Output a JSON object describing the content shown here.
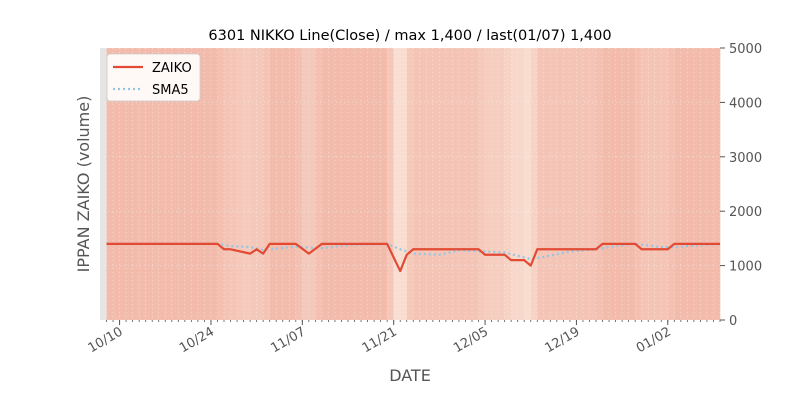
{
  "chart_data": {
    "type": "line",
    "title": "6301 NIKKO Line(Close) / max 1,400 / last(01/07) 1,400",
    "xlabel": "DATE",
    "ylabel": "IPPAN ZAIKO (volume)",
    "ylim": [
      0,
      5000
    ],
    "y_axis_side": "right",
    "yticks": [
      0,
      1000,
      2000,
      3000,
      4000,
      5000
    ],
    "ytick_labels": [
      "0",
      "1000",
      "2000",
      "3000",
      "4000",
      "5000"
    ],
    "xlim": [
      "2023-10-07",
      "2024-01-10"
    ],
    "xticks": [
      "2023-10-10",
      "2023-10-24",
      "2023-11-07",
      "2023-11-21",
      "2023-12-05",
      "2023-12-19",
      "2024-01-02"
    ],
    "xtick_labels": [
      "10/10",
      "10/24",
      "11/07",
      "11/21",
      "12/05",
      "12/19",
      "01/02"
    ],
    "grid": true,
    "legend": "top-left",
    "series": [
      {
        "name": "ZAIKO",
        "color": "#e24a33",
        "style": "solid",
        "points": [
          [
            "2023-10-08",
            1400
          ],
          [
            "2023-10-25",
            1400
          ],
          [
            "2023-10-26",
            1300
          ],
          [
            "2023-10-27",
            1300
          ],
          [
            "2023-10-30",
            1220
          ],
          [
            "2023-10-31",
            1300
          ],
          [
            "2023-11-01",
            1220
          ],
          [
            "2023-11-02",
            1400
          ],
          [
            "2023-11-06",
            1400
          ],
          [
            "2023-11-08",
            1220
          ],
          [
            "2023-11-10",
            1400
          ],
          [
            "2023-11-20",
            1400
          ],
          [
            "2023-11-22",
            900
          ],
          [
            "2023-11-23",
            1200
          ],
          [
            "2023-11-24",
            1300
          ],
          [
            "2023-12-04",
            1300
          ],
          [
            "2023-12-05",
            1200
          ],
          [
            "2023-12-08",
            1200
          ],
          [
            "2023-12-09",
            1100
          ],
          [
            "2023-12-11",
            1100
          ],
          [
            "2023-12-12",
            1000
          ],
          [
            "2023-12-13",
            1300
          ],
          [
            "2023-12-22",
            1300
          ],
          [
            "2023-12-23",
            1400
          ],
          [
            "2023-12-28",
            1400
          ],
          [
            "2023-12-29",
            1300
          ],
          [
            "2024-01-02",
            1300
          ],
          [
            "2024-01-03",
            1400
          ],
          [
            "2024-01-10",
            1400
          ]
        ]
      },
      {
        "name": "SMA5",
        "color": "#92c6e6",
        "style": "dotted",
        "points": [
          [
            "2023-10-08",
            1400
          ],
          [
            "2023-10-25",
            1400
          ],
          [
            "2023-10-27",
            1360
          ],
          [
            "2023-10-30",
            1340
          ],
          [
            "2023-11-01",
            1290
          ],
          [
            "2023-11-03",
            1310
          ],
          [
            "2023-11-06",
            1350
          ],
          [
            "2023-11-08",
            1330
          ],
          [
            "2023-11-10",
            1320
          ],
          [
            "2023-11-14",
            1380
          ],
          [
            "2023-11-20",
            1400
          ],
          [
            "2023-11-22",
            1300
          ],
          [
            "2023-11-24",
            1220
          ],
          [
            "2023-11-28",
            1200
          ],
          [
            "2023-12-01",
            1280
          ],
          [
            "2023-12-05",
            1260
          ],
          [
            "2023-12-08",
            1240
          ],
          [
            "2023-12-12",
            1120
          ],
          [
            "2023-12-14",
            1160
          ],
          [
            "2023-12-18",
            1260
          ],
          [
            "2023-12-22",
            1300
          ],
          [
            "2023-12-25",
            1360
          ],
          [
            "2023-12-28",
            1400
          ],
          [
            "2024-01-01",
            1340
          ],
          [
            "2024-01-03",
            1340
          ],
          [
            "2024-01-10",
            1400
          ]
        ]
      }
    ]
  }
}
